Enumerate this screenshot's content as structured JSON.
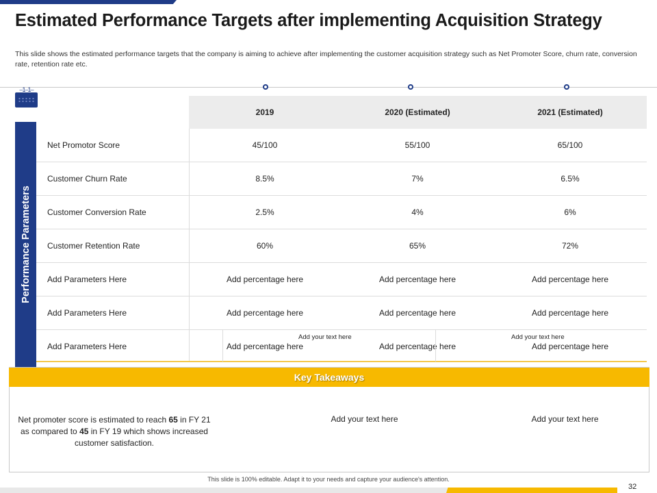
{
  "title": "Estimated Performance Targets after implementing Acquisition Strategy",
  "subtitle": "This slide shows the estimated performance targets that the company is aiming to achieve after implementing the customer acquisition strategy such as Net Promoter Score, churn rate, conversion rate, retention rate etc.",
  "colors": {
    "primary": "#1f3c88",
    "accent": "#f7b900",
    "header_bg": "#ececec"
  },
  "icons": {
    "calendar": "calendar-icon"
  },
  "sidebar_label": "Performance Parameters",
  "table": {
    "columns": [
      "2019",
      "2020 (Estimated)",
      "2021 (Estimated)"
    ],
    "rows": [
      {
        "label": "Net Promotor Score",
        "values": [
          "45/100",
          "55/100",
          "65/100"
        ]
      },
      {
        "label": "Customer Churn Rate",
        "values": [
          "8.5%",
          "7%",
          "6.5%"
        ]
      },
      {
        "label": "Customer Conversion  Rate",
        "values": [
          "2.5%",
          "4%",
          "6%"
        ]
      },
      {
        "label": "Customer Retention Rate",
        "values": [
          "60%",
          "65%",
          "72%"
        ]
      },
      {
        "label": "Add Parameters Here",
        "values": [
          "Add percentage  here",
          "Add percentage  here",
          "Add percentage  here"
        ]
      },
      {
        "label": "Add Parameters Here",
        "values": [
          "Add percentage  here",
          "Add percentage  here",
          "Add percentage  here"
        ]
      },
      {
        "label": "Add Parameters Here",
        "values": [
          "Add percentage  here",
          "Add percentage  here",
          "Add percentage  here"
        ]
      }
    ],
    "notes": [
      "Add your text here",
      "Add your text here"
    ]
  },
  "key_takeaways": {
    "header": "Key Takeaways",
    "item1": {
      "pre": "Net promoter score is  estimated to reach ",
      "value1": "65",
      "mid": "  in FY 21 as compared to ",
      "value2": "45",
      "post": "  in FY 19  which shows increased customer satisfaction."
    },
    "item2": "Add your text here",
    "item3": "Add your text here"
  },
  "footer": "This slide is 100% editable.  Adapt it to your needs and capture your audience's attention.",
  "page_number": "32"
}
